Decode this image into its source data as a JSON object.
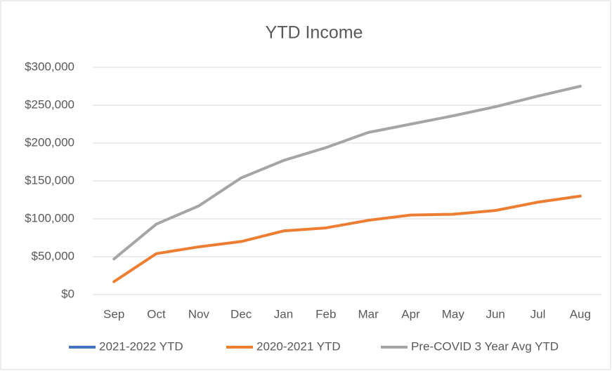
{
  "chart_data": {
    "type": "line",
    "title": "YTD Income",
    "categories": [
      "Sep",
      "Oct",
      "Nov",
      "Dec",
      "Jan",
      "Feb",
      "Mar",
      "Apr",
      "May",
      "Jun",
      "Jul",
      "Aug"
    ],
    "series": [
      {
        "name": "2021-2022 YTD",
        "color": "#4472c4",
        "values": [
          null,
          null,
          null,
          null,
          null,
          null,
          null,
          null,
          null,
          null,
          null,
          null
        ]
      },
      {
        "name": "2020-2021 YTD",
        "color": "#ed7d31",
        "values": [
          17000,
          54000,
          63000,
          70000,
          84000,
          88000,
          98000,
          105000,
          106000,
          111000,
          122000,
          130000
        ]
      },
      {
        "name": "Pre-COVID 3 Year Avg YTD",
        "color": "#a5a5a5",
        "values": [
          47000,
          93000,
          117000,
          154000,
          177000,
          194000,
          214000,
          225000,
          236000,
          248000,
          262000,
          275000
        ]
      }
    ],
    "ylim": [
      0,
      300000
    ],
    "yticks": [
      {
        "value": 0,
        "label": "$0"
      },
      {
        "value": 50000,
        "label": "$50,000"
      },
      {
        "value": 100000,
        "label": "$100,000"
      },
      {
        "value": 150000,
        "label": "$150,000"
      },
      {
        "value": 200000,
        "label": "$200,000"
      },
      {
        "value": 250000,
        "label": "$250,000"
      },
      {
        "value": 300000,
        "label": "$300,000"
      }
    ],
    "grid": true,
    "legend": "bottom"
  }
}
